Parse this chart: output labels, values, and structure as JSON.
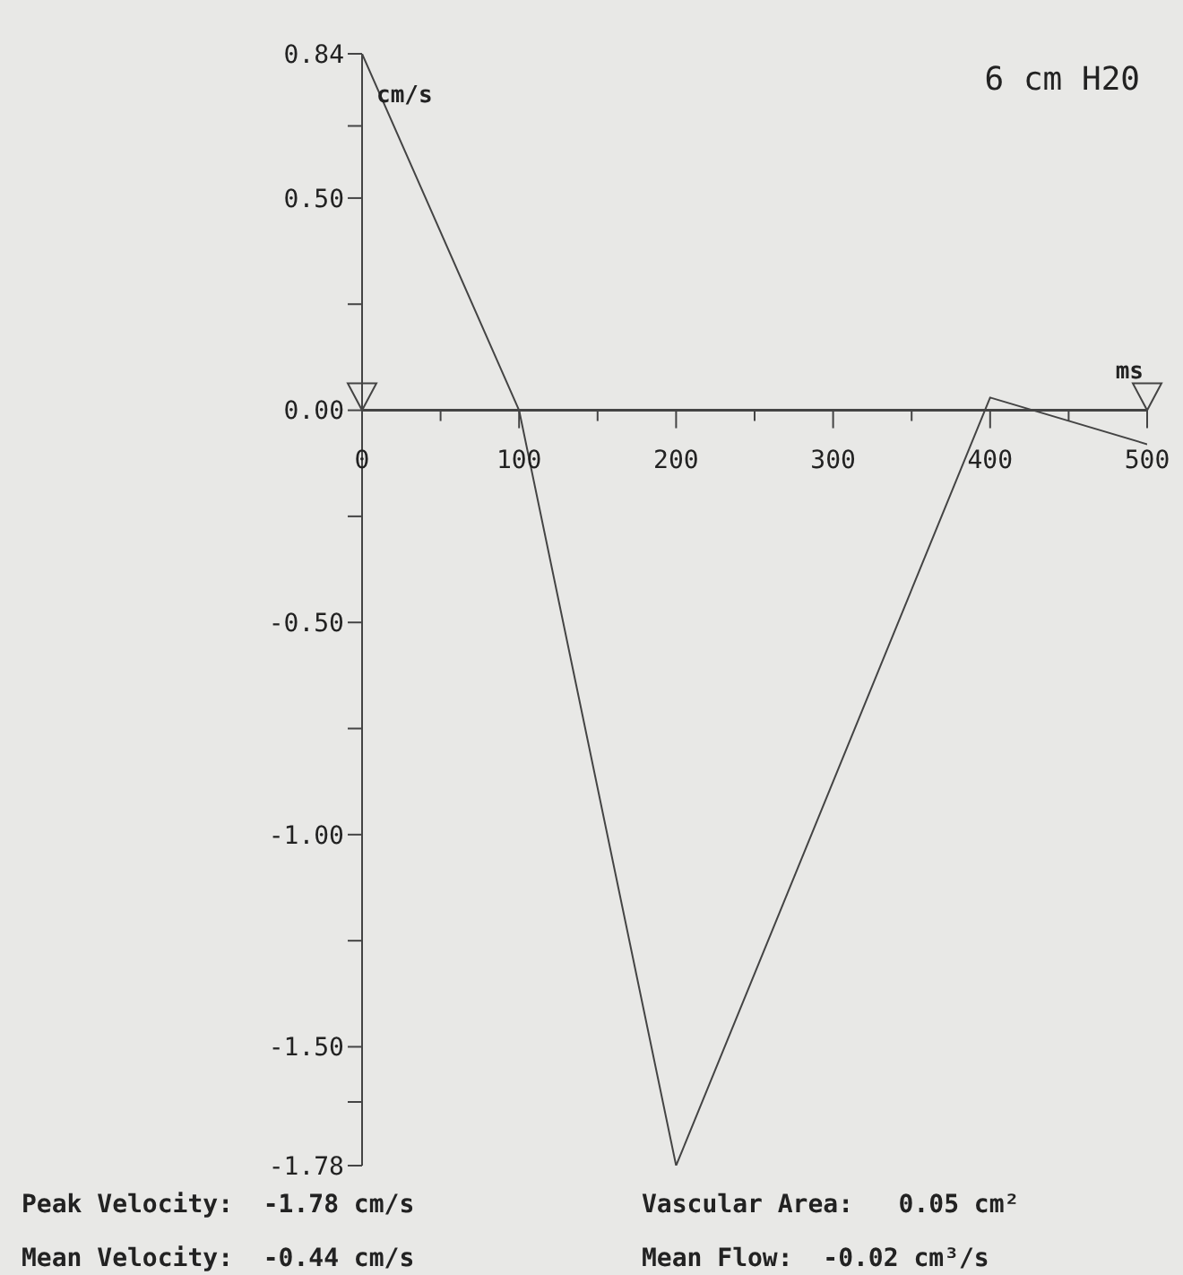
{
  "chart_data": {
    "type": "line",
    "title": "6 cm H20",
    "xlabel": "ms",
    "ylabel": "cm/s",
    "x": [
      0,
      100,
      200,
      400,
      500
    ],
    "series": [
      {
        "color": "#444444",
        "values": [
          0.84,
          0,
          -1.78,
          0.03,
          -0.08
        ]
      }
    ],
    "xlim": [
      0,
      500
    ],
    "xticks": [
      0,
      {
        "value": 50,
        "label": null
      },
      100,
      {
        "value": 150,
        "label": null
      },
      200,
      {
        "value": 250,
        "label": null
      },
      300,
      {
        "value": 350,
        "label": null
      },
      400,
      {
        "value": 450,
        "label": null
      },
      500
    ],
    "ylim": [
      -1.78,
      0.84
    ],
    "yticks": [
      {
        "value": 0.84,
        "label": "0.84"
      },
      {
        "value": 0.67,
        "label": null
      },
      {
        "value": 0.5,
        "label": "0.50"
      },
      {
        "value": 0.25,
        "label": null
      },
      {
        "value": 0,
        "label": "0.00"
      },
      {
        "value": -0.25,
        "label": null
      },
      {
        "value": -0.5,
        "label": "-0.50"
      },
      {
        "value": -0.75,
        "label": null
      },
      {
        "value": -1,
        "label": "-1.00"
      },
      {
        "value": -1.25,
        "label": null
      },
      {
        "value": -1.5,
        "label": "-1.50"
      },
      {
        "value": -1.63,
        "label": null
      },
      {
        "value": -1.78,
        "label": "-1.78"
      }
    ],
    "annotations": [
      "Peak Velocity:  -1.78 cm/s",
      "Vascular Area:   0.05 cm²",
      "Mean Velocity:  -0.44 cm/s",
      "Mean Flow:  -0.02 cm³/s"
    ]
  }
}
